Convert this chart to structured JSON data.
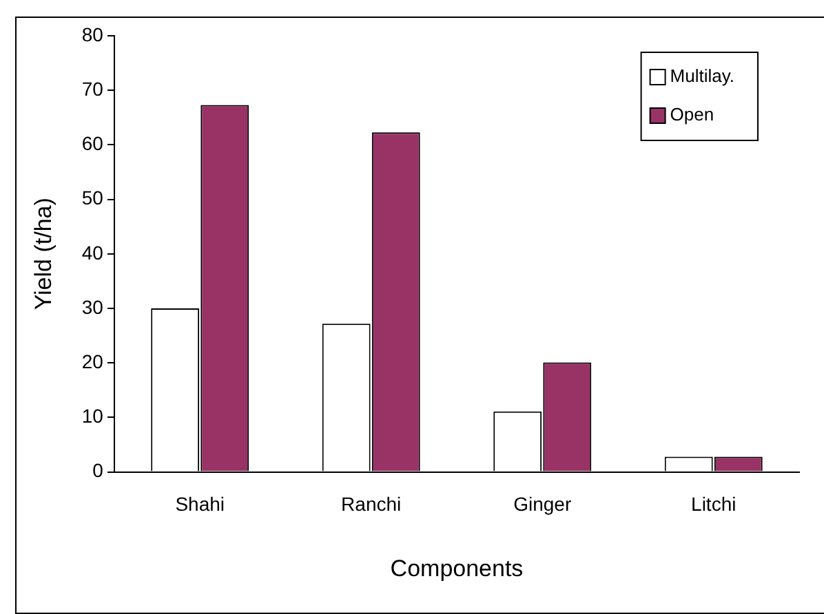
{
  "chart_data": {
    "type": "bar",
    "xlabel": "Components",
    "ylabel": "Yield (t/ha)",
    "categories": [
      "Shahi",
      "Ranchi",
      "Ginger",
      "Litchi"
    ],
    "series": [
      {
        "name": "Multilay.",
        "color": "#ffffff",
        "values": [
          30,
          27.2,
          11.1,
          2.8
        ]
      },
      {
        "name": "Open",
        "color": "#993366",
        "values": [
          67.3,
          62.3,
          20.1,
          2.8
        ]
      }
    ],
    "ylim": [
      0,
      80
    ],
    "yticks": [
      0,
      10,
      20,
      30,
      40,
      50,
      60,
      70,
      80
    ],
    "grid": false,
    "legend": "top right"
  }
}
